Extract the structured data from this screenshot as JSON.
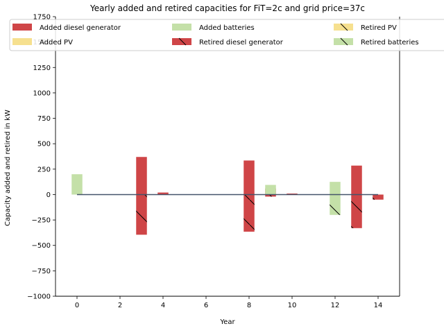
{
  "chart_data": {
    "type": "bar",
    "title": "Yearly added and retired capacities for FiT=2c and grid price=37c",
    "xlabel": "Year",
    "ylabel": "Capacity added and retired in kW",
    "xlim": [
      -1,
      15
    ],
    "ylim": [
      -1000,
      1750
    ],
    "xticks": [
      0,
      2,
      4,
      6,
      8,
      10,
      12,
      14
    ],
    "yticks": [
      -1000,
      -750,
      -500,
      -250,
      0,
      250,
      500,
      750,
      1000,
      1250,
      1500,
      1750
    ],
    "grid": false,
    "legend_placement": "top, spanning width",
    "colors": {
      "diesel": "#cf4547",
      "pv": "#f6e08f",
      "batteries": "#c4e0a8",
      "zero_line": "#44546a",
      "retired_hatch": "#000000"
    },
    "series": [
      {
        "name": "Added diesel generator",
        "color": "diesel",
        "kind": "added",
        "offset": -0.25,
        "points": [
          {
            "x": 3,
            "y": 370
          },
          {
            "x": 4,
            "y": 20
          },
          {
            "x": 8,
            "y": 335
          },
          {
            "x": 9,
            "y": 60
          },
          {
            "x": 10,
            "y": 10
          },
          {
            "x": 13,
            "y": 285
          }
        ]
      },
      {
        "name": "Added PV",
        "color": "pv",
        "kind": "added",
        "offset": 0.0,
        "points": []
      },
      {
        "name": "Added batteries",
        "color": "batteries",
        "kind": "added",
        "offset": -0.25,
        "points": [
          {
            "x": 0,
            "y": 200
          },
          {
            "x": 9,
            "y": 95
          },
          {
            "x": 12,
            "y": 125
          }
        ]
      },
      {
        "name": "Retired diesel generator",
        "color": "diesel",
        "kind": "retired",
        "offset": -0.25,
        "points": [
          {
            "x": 3,
            "y": -395
          },
          {
            "x": 8,
            "y": -365
          },
          {
            "x": 9,
            "y": -20
          },
          {
            "x": 13,
            "y": -330
          },
          {
            "x": 14,
            "y": -50
          }
        ]
      },
      {
        "name": "Retired PV",
        "color": "pv",
        "kind": "retired",
        "offset": 0.0,
        "points": []
      },
      {
        "name": "Retired batteries",
        "color": "batteries",
        "kind": "retired",
        "offset": -0.25,
        "points": [
          {
            "x": 12,
            "y": -200
          }
        ]
      }
    ],
    "legend_rows": [
      [
        "Added diesel generator",
        "Added batteries",
        "Retired PV"
      ],
      [
        "Added PV",
        "Retired diesel generator",
        "Retired batteries"
      ]
    ]
  }
}
